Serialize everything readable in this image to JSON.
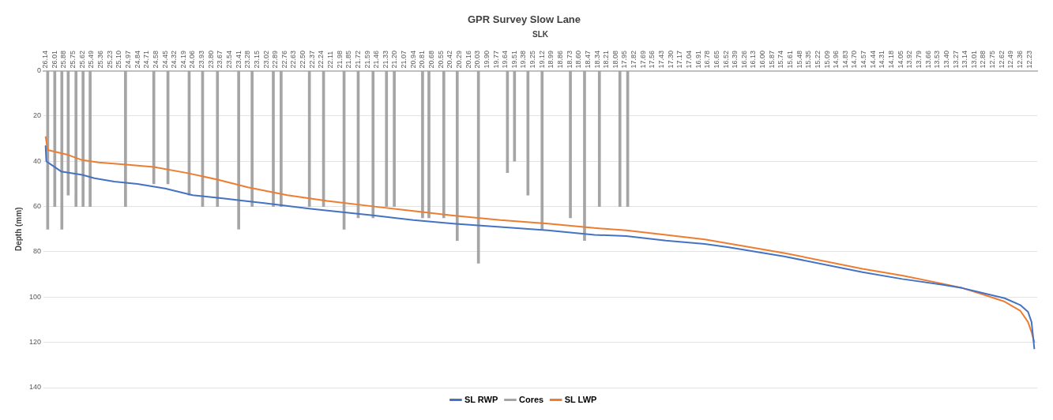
{
  "chart_data": {
    "type": "line",
    "title": "GPR Survey Slow Lane",
    "xlabel": "SLK",
    "ylabel": "Depth (mm)",
    "xlim": [
      26.17,
      12.12
    ],
    "xticks": [
      26.14,
      26.01,
      25.88,
      25.75,
      25.62,
      25.49,
      25.36,
      25.23,
      {
        "value": 25.1,
        "label": "25.10"
      },
      24.97,
      24.84,
      24.71,
      24.58,
      24.45,
      24.32,
      24.19,
      24.06,
      23.93,
      {
        "value": 23.8,
        "label": "23.80"
      },
      23.67,
      23.54,
      23.41,
      23.28,
      23.15,
      23.02,
      22.89,
      22.76,
      22.63,
      {
        "value": 22.5,
        "label": "22.50"
      },
      22.37,
      22.24,
      22.11,
      21.98,
      21.85,
      21.72,
      21.59,
      21.46,
      21.33,
      {
        "value": 21.2,
        "label": "21.20"
      },
      21.07,
      20.94,
      20.81,
      20.68,
      20.55,
      20.42,
      20.29,
      20.16,
      20.03,
      {
        "value": 19.9,
        "label": "19.90"
      },
      19.77,
      19.64,
      19.51,
      19.38,
      19.25,
      19.12,
      18.99,
      18.86,
      18.73,
      {
        "value": 18.6,
        "label": "18.60"
      },
      18.47,
      18.34,
      18.21,
      18.08,
      17.95,
      17.82,
      17.69,
      17.56,
      17.43,
      {
        "value": 17.3,
        "label": "17.30"
      },
      17.17,
      17.04,
      16.91,
      16.78,
      16.65,
      16.52,
      16.39,
      16.26,
      16.13,
      {
        "value": 16,
        "label": "16.00"
      },
      15.87,
      15.74,
      15.61,
      15.48,
      15.35,
      15.22,
      15.09,
      14.96,
      14.83,
      {
        "value": 14.7,
        "label": "14.70"
      },
      14.57,
      14.44,
      14.31,
      14.18,
      14.05,
      13.92,
      13.79,
      13.66,
      13.53,
      {
        "value": 13.4,
        "label": "13.40"
      },
      13.27,
      13.14,
      13.01,
      12.88,
      12.75,
      12.62,
      12.49,
      12.36,
      12.23
    ],
    "ylim": [
      140,
      0
    ],
    "yticks": [
      0,
      20,
      40,
      60,
      80,
      100,
      120,
      140
    ],
    "grid": "y",
    "legend": "bottom",
    "series": [
      {
        "name": "SL RWP",
        "color": "#4472c4",
        "x": [
          26.14,
          26.13,
          26.06,
          25.92,
          25.62,
          25.45,
          25.17,
          24.84,
          24.45,
          24.06,
          23.61,
          23.05,
          22.39,
          21.94,
          21.49,
          20.94,
          20.38,
          19.71,
          19.04,
          18.38,
          17.93,
          17.37,
          16.82,
          16.48,
          15.7,
          14.59,
          14.03,
          13.47,
          13.18,
          12.92,
          12.58,
          12.36,
          12.25,
          12.2,
          12.16
        ],
        "values": [
          33,
          40,
          41.5,
          44.5,
          46,
          47.5,
          49,
          50,
          52,
          55,
          56.5,
          58.5,
          61,
          62.5,
          64,
          66,
          67.5,
          69,
          70.5,
          72.5,
          73,
          75,
          76.5,
          78,
          82,
          89,
          92,
          94.5,
          96,
          98,
          100.5,
          103.5,
          106.5,
          111,
          123
        ]
      },
      {
        "name": "Cores",
        "type": "bar",
        "color": "#a5a5a5",
        "x": [
          26.11,
          26.01,
          25.91,
          25.82,
          25.71,
          25.61,
          25.51,
          25.01,
          24.61,
          24.41,
          24.11,
          23.92,
          23.71,
          23.41,
          23.22,
          22.92,
          22.81,
          22.41,
          22.21,
          21.92,
          21.72,
          21.51,
          21.32,
          21.21,
          20.81,
          20.72,
          20.51,
          20.32,
          20.02,
          19.61,
          19.51,
          19.32,
          19.12,
          18.72,
          18.52,
          18.31,
          18.02,
          17.91
        ],
        "values": [
          70,
          60,
          70,
          55,
          60,
          60,
          60,
          60,
          50,
          50,
          55,
          60,
          60,
          70,
          60,
          60,
          60,
          60,
          60,
          70,
          65,
          65,
          60,
          60,
          65,
          65,
          65,
          75,
          85,
          45,
          40,
          55,
          70,
          65,
          75,
          60,
          60,
          60
        ]
      },
      {
        "name": "SL LWP",
        "color": "#ed7d31",
        "x": [
          26.14,
          26.11,
          25.84,
          25.62,
          25.39,
          25.0,
          24.61,
          24.17,
          23.72,
          23.28,
          22.72,
          22.16,
          21.49,
          20.94,
          20.38,
          19.71,
          19.04,
          18.38,
          17.93,
          17.37,
          16.82,
          15.7,
          14.59,
          14.03,
          13.47,
          13.18,
          12.92,
          12.58,
          12.36,
          12.25,
          12.2,
          12.16
        ],
        "values": [
          29,
          35,
          37,
          39.5,
          40.5,
          41.5,
          42.5,
          45,
          48,
          51.5,
          55,
          57.5,
          60,
          62,
          64,
          66,
          67.5,
          69.5,
          70.5,
          72.5,
          74.5,
          80.5,
          87.5,
          90.5,
          94,
          96,
          98.5,
          102,
          106,
          111,
          115.5,
          120
        ]
      }
    ]
  }
}
